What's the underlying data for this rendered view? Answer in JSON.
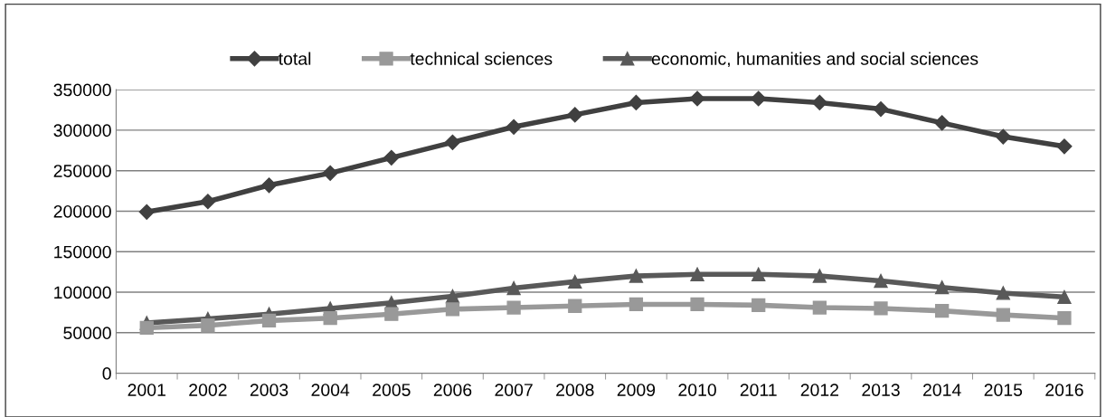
{
  "chart_data": {
    "type": "line",
    "categories": [
      "2001",
      "2002",
      "2003",
      "2004",
      "2005",
      "2006",
      "2007",
      "2008",
      "2009",
      "2010",
      "2011",
      "2012",
      "2013",
      "2014",
      "2015",
      "2016"
    ],
    "series": [
      {
        "name": "total",
        "color": "#404040",
        "marker": "diamond",
        "values": [
          199000,
          212000,
          232000,
          247000,
          266000,
          285000,
          304000,
          319000,
          334000,
          339000,
          339000,
          334000,
          326000,
          309000,
          292000,
          280000
        ]
      },
      {
        "name": "technical sciences",
        "color": "#999999",
        "marker": "square",
        "values": [
          56000,
          59000,
          65000,
          68000,
          73000,
          79000,
          81000,
          83000,
          85000,
          85000,
          84000,
          81000,
          80000,
          77000,
          72000,
          68000
        ]
      },
      {
        "name": "economic, humanities and social sciences",
        "color": "#595959",
        "marker": "triangle",
        "values": [
          62000,
          67000,
          73000,
          80000,
          87000,
          95000,
          105000,
          113000,
          120000,
          122000,
          122000,
          120000,
          114000,
          106000,
          99000,
          94000
        ]
      }
    ],
    "ylim": [
      0,
      350000
    ],
    "yticks": [
      0,
      50000,
      100000,
      150000,
      200000,
      250000,
      300000,
      350000
    ],
    "grid": "y",
    "legend": "top",
    "line_style": "solid"
  }
}
